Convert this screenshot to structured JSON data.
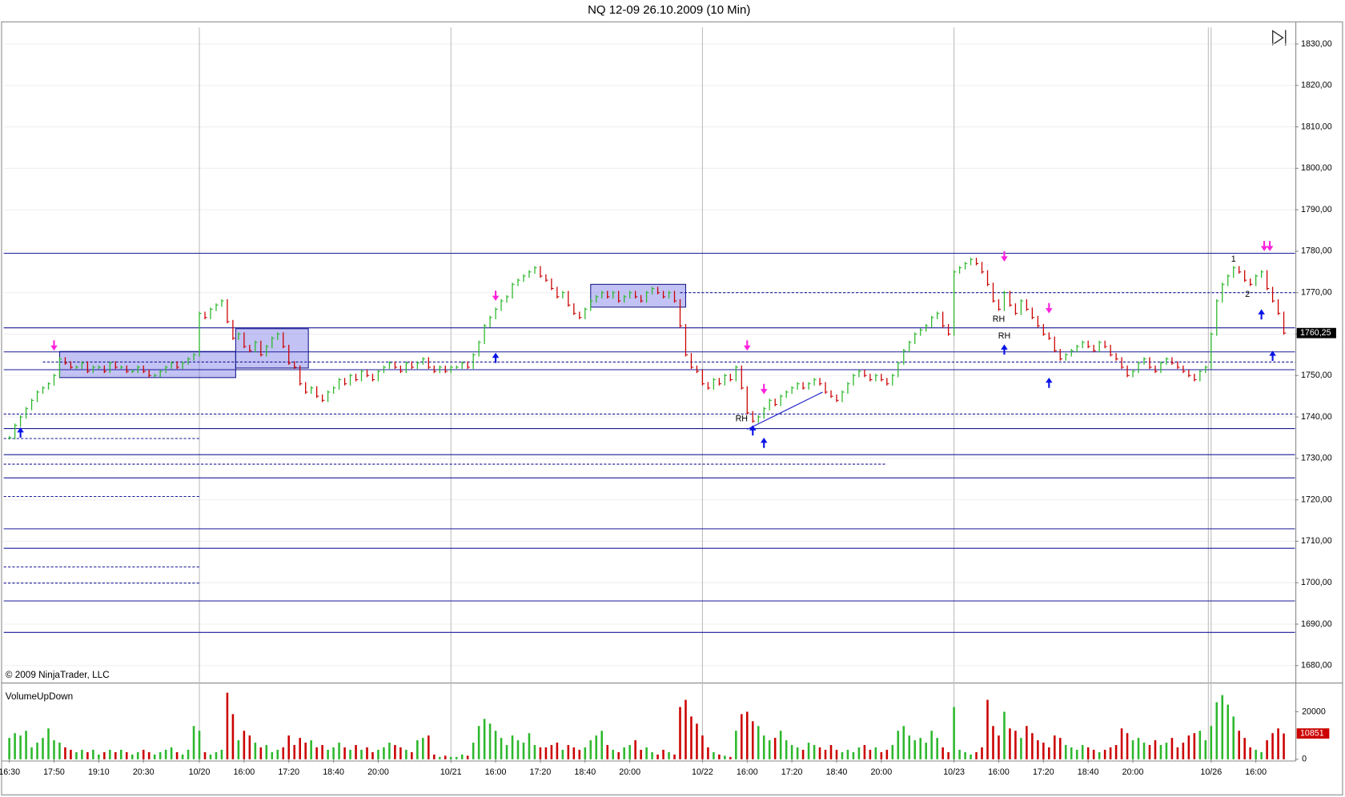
{
  "chart_data": {
    "type": "bar",
    "title": "NQ 12-09  26.10.2009 (10 Min)",
    "copyright": "© 2009 NinjaTrader, LLC",
    "volume_title": "VolumeUpDown",
    "up_color": "#2db82d",
    "down_color": "#cc0000",
    "xlim": [
      -1,
      230
    ],
    "xticks": [
      {
        "value": 0,
        "label": "16:30"
      },
      {
        "value": 8,
        "label": "17:50"
      },
      {
        "value": 16,
        "label": "19:10"
      },
      {
        "value": 24,
        "label": "20:30"
      },
      {
        "value": 34,
        "label": "10/20"
      },
      {
        "value": 42,
        "label": "16:00"
      },
      {
        "value": 50,
        "label": "17:20"
      },
      {
        "value": 58,
        "label": "18:40"
      },
      {
        "value": 66,
        "label": "20:00"
      },
      {
        "value": 79,
        "label": "10/21"
      },
      {
        "value": 87,
        "label": "16:00"
      },
      {
        "value": 95,
        "label": "17:20"
      },
      {
        "value": 103,
        "label": "18:40"
      },
      {
        "value": 111,
        "label": "20:00"
      },
      {
        "value": 124,
        "label": "10/22"
      },
      {
        "value": 132,
        "label": "16:00"
      },
      {
        "value": 140,
        "label": "17:20"
      },
      {
        "value": 148,
        "label": "18:40"
      },
      {
        "value": 156,
        "label": "20:00"
      },
      {
        "value": 169,
        "label": "10/23"
      },
      {
        "value": 177,
        "label": "16:00"
      },
      {
        "value": 185,
        "label": "17:20"
      },
      {
        "value": 193,
        "label": "18:40"
      },
      {
        "value": 201,
        "label": "20:00"
      },
      {
        "value": 215,
        "label": "10/26"
      },
      {
        "value": 223,
        "label": "16:00"
      }
    ],
    "sessions": [
      34,
      79,
      124,
      169,
      214.5,
      215
    ],
    "ylim": [
      1676,
      1834
    ],
    "yticks": [
      {
        "value": 1830,
        "label": "1830,00"
      },
      {
        "value": 1820,
        "label": "1820,00"
      },
      {
        "value": 1810,
        "label": "1810,00"
      },
      {
        "value": 1800,
        "label": "1800,00"
      },
      {
        "value": 1790,
        "label": "1790,00"
      },
      {
        "value": 1780,
        "label": "1780,00"
      },
      {
        "value": 1770,
        "label": "1770,00"
      },
      {
        "value": 1760,
        "label": "1760,00"
      },
      {
        "value": 1750,
        "label": "1750,00"
      },
      {
        "value": 1740,
        "label": "1740,00"
      },
      {
        "value": 1730,
        "label": "1730,00"
      },
      {
        "value": 1720,
        "label": "1720,00"
      },
      {
        "value": 1710,
        "label": "1710,00"
      },
      {
        "value": 1700,
        "label": "1700,00"
      },
      {
        "value": 1690,
        "label": "1690,00"
      },
      {
        "value": 1680,
        "label": "1680,00"
      }
    ],
    "grid": true,
    "close": [
      1735,
      1738,
      1740,
      1742,
      1744,
      1746,
      1747,
      1748,
      1750,
      1754,
      1753,
      1752,
      1752,
      1753,
      1751,
      1752,
      1752,
      1751,
      1753,
      1752,
      1752,
      1751,
      1751,
      1752,
      1751,
      1750,
      1750,
      1751,
      1752,
      1753,
      1752,
      1753,
      1754,
      1755,
      1765,
      1764,
      1766,
      1767,
      1768,
      1763,
      1759,
      1760,
      1757,
      1756,
      1758,
      1755,
      1757,
      1759,
      1760,
      1757,
      1753,
      1752,
      1748,
      1746,
      1747,
      1745,
      1744,
      1746,
      1747,
      1749,
      1748,
      1750,
      1749,
      1751,
      1750,
      1749,
      1751,
      1752,
      1753,
      1752,
      1751,
      1753,
      1752,
      1753,
      1754,
      1752,
      1751,
      1752,
      1751,
      1752,
      1752,
      1753,
      1752,
      1755,
      1758,
      1762,
      1764,
      1766,
      1768,
      1769,
      1772,
      1773,
      1774,
      1775,
      1776,
      1774,
      1773,
      1771,
      1769,
      1770,
      1767,
      1765,
      1764,
      1766,
      1768,
      1769,
      1770,
      1769,
      1770,
      1768,
      1769,
      1770,
      1769,
      1768,
      1770,
      1771,
      1770,
      1769,
      1770,
      1768,
      1762,
      1755,
      1752,
      1751,
      1748,
      1747,
      1749,
      1748,
      1750,
      1749,
      1752,
      1747,
      1741,
      1739,
      1740,
      1742,
      1744,
      1743,
      1745,
      1746,
      1747,
      1748,
      1747,
      1748,
      1749,
      1748,
      1746,
      1745,
      1744,
      1746,
      1748,
      1750,
      1751,
      1750,
      1749,
      1750,
      1749,
      1748,
      1750,
      1753,
      1756,
      1758,
      1760,
      1761,
      1762,
      1764,
      1765,
      1762,
      1760,
      1775,
      1776,
      1777,
      1778,
      1777,
      1775,
      1772,
      1768,
      1766,
      1770,
      1767,
      1765,
      1768,
      1766,
      1764,
      1762,
      1760,
      1759,
      1756,
      1754,
      1755,
      1756,
      1757,
      1758,
      1757,
      1756,
      1758,
      1757,
      1755,
      1754,
      1752,
      1750,
      1751,
      1753,
      1754,
      1752,
      1751,
      1753,
      1754,
      1753,
      1752,
      1751,
      1750,
      1749,
      1751,
      1752,
      1760,
      1768,
      1772,
      1774,
      1776,
      1775,
      1773,
      1772,
      1774,
      1775,
      1771,
      1768,
      1765,
      1760.25
    ],
    "last_label": {
      "value": 1760.25,
      "label": "1760,25"
    },
    "levels": [
      {
        "value": 1779.5,
        "style": "solid"
      },
      {
        "value": 1761.5,
        "style": "solid"
      },
      {
        "value": 1755.7,
        "style": "solid"
      },
      {
        "value": 1751.4,
        "style": "solid"
      },
      {
        "value": 1737.2,
        "style": "solid"
      },
      {
        "value": 1730.9,
        "style": "solid"
      },
      {
        "value": 1725.3,
        "style": "solid"
      },
      {
        "value": 1713,
        "style": "solid"
      },
      {
        "value": 1708.3,
        "style": "solid"
      },
      {
        "value": 1695.6,
        "style": "solid"
      },
      {
        "value": 1688,
        "style": "solid"
      },
      {
        "value": 1770,
        "style": "dashed",
        "from": 120
      },
      {
        "value": 1753.25,
        "style": "dashed",
        "from": 6
      },
      {
        "value": 1740.7,
        "style": "dashed"
      },
      {
        "value": 1734.8,
        "style": "dashed",
        "to": 34
      },
      {
        "value": 1728.6,
        "style": "dashed",
        "to": 157
      },
      {
        "value": 1720.8,
        "style": "dashed",
        "to": 34
      },
      {
        "value": 1703.8,
        "style": "dashed",
        "to": 34
      },
      {
        "value": 1699.9,
        "style": "dashed",
        "to": 34
      }
    ],
    "zones": [
      {
        "x": [
          9,
          40.5
        ],
        "y": [
          1749.5,
          1755.8
        ]
      },
      {
        "x": [
          40.5,
          53.5
        ],
        "y": [
          1751.8,
          1761.3
        ]
      },
      {
        "x": [
          104,
          121
        ],
        "y": [
          1766.5,
          1772
        ]
      }
    ],
    "signals_up": [
      {
        "x": 2,
        "y": 1737.5
      },
      {
        "x": 87,
        "y": 1755.5
      },
      {
        "x": 133,
        "y": 1738
      },
      {
        "x": 135,
        "y": 1735
      },
      {
        "x": 178,
        "y": 1757.5
      },
      {
        "x": 186,
        "y": 1749.5
      },
      {
        "x": 224,
        "y": 1766
      },
      {
        "x": 226,
        "y": 1756
      }
    ],
    "signals_down": [
      {
        "x": 8,
        "y": 1756
      },
      {
        "x": 87,
        "y": 1768
      },
      {
        "x": 132,
        "y": 1756
      },
      {
        "x": 135,
        "y": 1745.5
      },
      {
        "x": 178,
        "y": 1777.5
      },
      {
        "x": 186,
        "y": 1765
      },
      {
        "x": 224.5,
        "y": 1780
      },
      {
        "x": 225.5,
        "y": 1780
      }
    ],
    "annotations": [
      {
        "text": "RH",
        "x": 131,
        "y": 1739.5
      },
      {
        "text": "RH",
        "x": 177,
        "y": 1763.5
      },
      {
        "text": "RH",
        "x": 178,
        "y": 1759.5
      },
      {
        "text": "1",
        "x": 219,
        "y": 1778
      },
      {
        "text": "2",
        "x": 221.5,
        "y": 1769.5
      }
    ],
    "trendline": {
      "x": [
        132,
        145.5
      ],
      "y": [
        1737,
        1746
      ]
    },
    "volume": [
      9000,
      11000,
      10000,
      12000,
      5000,
      7000,
      9000,
      13000,
      8000,
      7000,
      5000,
      4000,
      3000,
      4000,
      3000,
      4000,
      2000,
      3000,
      4000,
      3000,
      4000,
      3000,
      2000,
      3000,
      4000,
      3000,
      2000,
      3000,
      4000,
      5000,
      3000,
      2000,
      4000,
      14000,
      12000,
      3000,
      2000,
      3000,
      4000,
      28000,
      19000,
      8000,
      12000,
      10000,
      7000,
      5000,
      6000,
      3000,
      4000,
      5000,
      10000,
      6000,
      9000,
      7000,
      8000,
      5000,
      6000,
      4000,
      5000,
      7000,
      5000,
      4000,
      6000,
      4000,
      5000,
      3000,
      4000,
      5000,
      7000,
      6000,
      5000,
      4000,
      3000,
      8000,
      9000,
      10000,
      2000,
      1000,
      1500,
      1000,
      1000,
      2000,
      1500,
      7000,
      14000,
      17000,
      15000,
      12000,
      9000,
      6000,
      10000,
      8000,
      7000,
      11000,
      6000,
      5000,
      5000,
      6000,
      7000,
      4000,
      6000,
      5000,
      4000,
      5000,
      8000,
      10000,
      12000,
      6000,
      4000,
      3000,
      5000,
      6000,
      8000,
      4000,
      5000,
      3000,
      2000,
      4000,
      3000,
      2000,
      22000,
      25000,
      18000,
      15000,
      10000,
      5000,
      3000,
      2000,
      1500,
      1000,
      12000,
      19000,
      20000,
      16000,
      14000,
      10000,
      8000,
      9000,
      12000,
      8000,
      6000,
      5000,
      4000,
      7000,
      6000,
      5000,
      4000,
      6000,
      4000,
      3000,
      4000,
      3000,
      5000,
      6000,
      4000,
      5000,
      3000,
      4000,
      6000,
      12000,
      14000,
      10000,
      8000,
      9000,
      7000,
      12000,
      9000,
      5000,
      3000,
      22000,
      4000,
      3000,
      2000,
      3000,
      5000,
      25000,
      14000,
      10000,
      20000,
      13000,
      12000,
      9000,
      14000,
      11000,
      8000,
      7000,
      5000,
      10000,
      9000,
      6000,
      5000,
      4000,
      6000,
      5000,
      4000,
      3000,
      4000,
      5000,
      6000,
      13000,
      11000,
      8000,
      9000,
      7000,
      6000,
      8000,
      6000,
      7000,
      9000,
      5000,
      7000,
      10000,
      11000,
      12000,
      8000,
      14000,
      24000,
      27000,
      23000,
      18000,
      12000,
      9000,
      5000,
      4000,
      3000,
      8000,
      11000,
      13000,
      10851
    ],
    "vlim": [
      0,
      31000
    ],
    "vticks": [
      20000,
      0
    ]
  }
}
